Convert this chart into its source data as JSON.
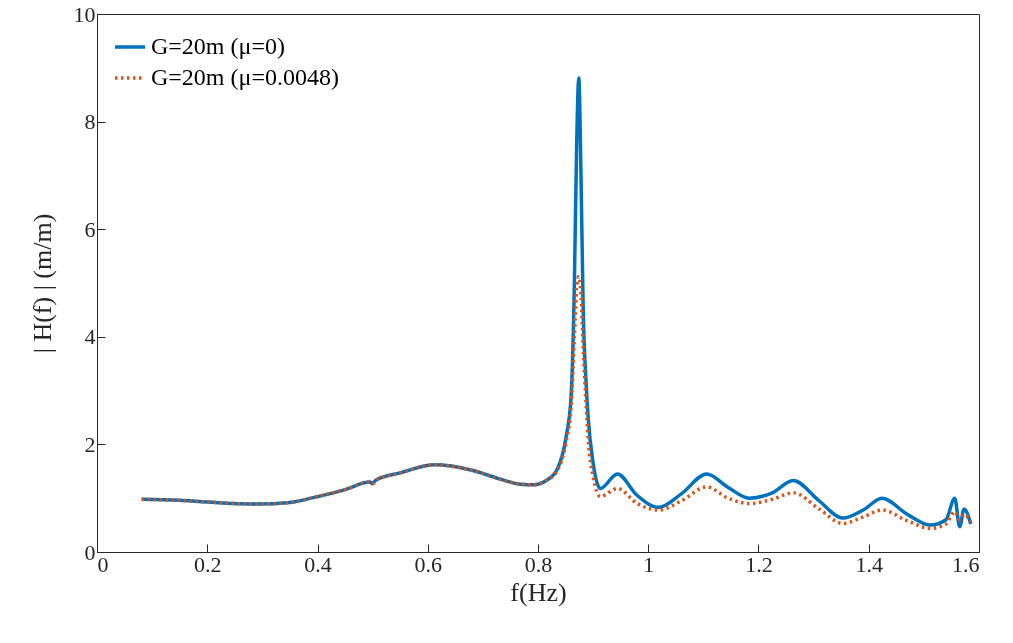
{
  "chart_data": {
    "type": "line",
    "xlabel": "f(Hz)",
    "ylabel": "| H(f) | (m/m)",
    "x": [
      0.081,
      0.15,
      0.2,
      0.29,
      0.35,
      0.4,
      0.45,
      0.495,
      0.5,
      0.505,
      0.55,
      0.613,
      0.68,
      0.73,
      0.768,
      0.792,
      0.815,
      0.834,
      0.851,
      0.86,
      0.866,
      0.87,
      0.874,
      0.878,
      0.882,
      0.887,
      0.891,
      0.9,
      0.913,
      0.944,
      0.98,
      1.019,
      1.06,
      1.106,
      1.145,
      1.183,
      1.225,
      1.263,
      1.31,
      1.353,
      1.39,
      1.424,
      1.47,
      1.512,
      1.54,
      1.556,
      1.565,
      1.573,
      1.585
    ],
    "series": [
      {
        "name": "G=20m (μ=0)",
        "color": "#0072bd",
        "line_style": "solid",
        "values": [
          0.98,
          0.96,
          0.93,
          0.89,
          0.92,
          1.03,
          1.16,
          1.3,
          1.27,
          1.33,
          1.47,
          1.62,
          1.52,
          1.36,
          1.26,
          1.25,
          1.33,
          1.52,
          2.14,
          2.89,
          5.0,
          7.5,
          8.81,
          7.0,
          4.5,
          3.2,
          2.5,
          1.65,
          1.18,
          1.45,
          1.05,
          0.83,
          1.08,
          1.45,
          1.2,
          1.0,
          1.1,
          1.33,
          0.95,
          0.63,
          0.78,
          1.0,
          0.7,
          0.5,
          0.6,
          1.0,
          0.47,
          0.8,
          0.52
        ]
      },
      {
        "name": "G=20m (μ=0.0048)",
        "color": "#d95319",
        "line_style": "dotted",
        "values": [
          0.98,
          0.96,
          0.93,
          0.89,
          0.92,
          1.03,
          1.16,
          1.3,
          1.27,
          1.33,
          1.47,
          1.62,
          1.52,
          1.36,
          1.26,
          1.25,
          1.33,
          1.5,
          2.05,
          2.7,
          4.0,
          4.9,
          5.12,
          4.8,
          3.8,
          2.8,
          2.1,
          1.4,
          1.03,
          1.18,
          0.9,
          0.78,
          0.95,
          1.21,
          1.0,
          0.9,
          0.98,
          1.1,
          0.8,
          0.53,
          0.65,
          0.78,
          0.58,
          0.44,
          0.52,
          0.75,
          0.6,
          0.7,
          0.55
        ]
      }
    ],
    "xlim": [
      0,
      1.6
    ],
    "xticks": [
      0,
      0.2,
      0.4,
      0.6,
      0.8,
      1,
      1.2,
      1.4,
      1.6
    ],
    "ylim": [
      0,
      10
    ],
    "yticks": [
      0,
      2,
      4,
      6,
      8,
      10
    ],
    "grid": false,
    "legend": "top left",
    "marker": "none"
  }
}
